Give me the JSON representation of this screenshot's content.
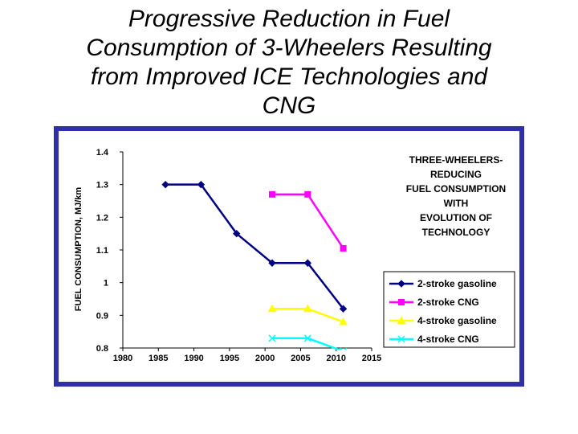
{
  "slide": {
    "title_lines": [
      "Progressive Reduction in Fuel",
      "Consumption of 3-Wheelers Resulting",
      "from Improved ICE Technologies and",
      "CNG"
    ]
  },
  "chart_data": {
    "type": "line",
    "title_lines": [
      "THREE-WHEELERS-",
      "REDUCING",
      "FUEL CONSUMPTION",
      "WITH",
      "EVOLUTION OF",
      "TECHNOLOGY"
    ],
    "xlabel": "",
    "ylabel": "FUEL CONSUMPTION, MJ/km",
    "xlim": [
      1980,
      2015
    ],
    "ylim": [
      0.8,
      1.4
    ],
    "x_ticks": [
      "1980",
      "1985",
      "1990",
      "1995",
      "2000",
      "2005",
      "2010",
      "2015"
    ],
    "y_ticks": [
      "1.4",
      "1.3",
      "1.2",
      "1.1",
      "1",
      "0.9",
      "0.8"
    ],
    "grid": false,
    "legend_position": "right",
    "series": [
      {
        "name": "2-stroke gasoline",
        "color": "#000080",
        "marker": "diamond",
        "x": [
          1986,
          1991,
          1996,
          2001,
          2006,
          2011
        ],
        "values": [
          1.3,
          1.3,
          1.15,
          1.06,
          1.06,
          0.92
        ]
      },
      {
        "name": "2-stroke CNG",
        "color": "#ff00ff",
        "marker": "square",
        "x": [
          2001,
          2006,
          2011
        ],
        "values": [
          1.27,
          1.27,
          1.105
        ]
      },
      {
        "name": "4-stroke gasoline",
        "color": "#ffff00",
        "marker": "triangle",
        "x": [
          2001,
          2006,
          2011
        ],
        "values": [
          0.92,
          0.92,
          0.88
        ]
      },
      {
        "name": "4-stroke CNG",
        "color": "#00ffff",
        "marker": "x",
        "x": [
          2001,
          2006,
          2011
        ],
        "values": [
          0.83,
          0.83,
          0.79
        ]
      }
    ]
  }
}
